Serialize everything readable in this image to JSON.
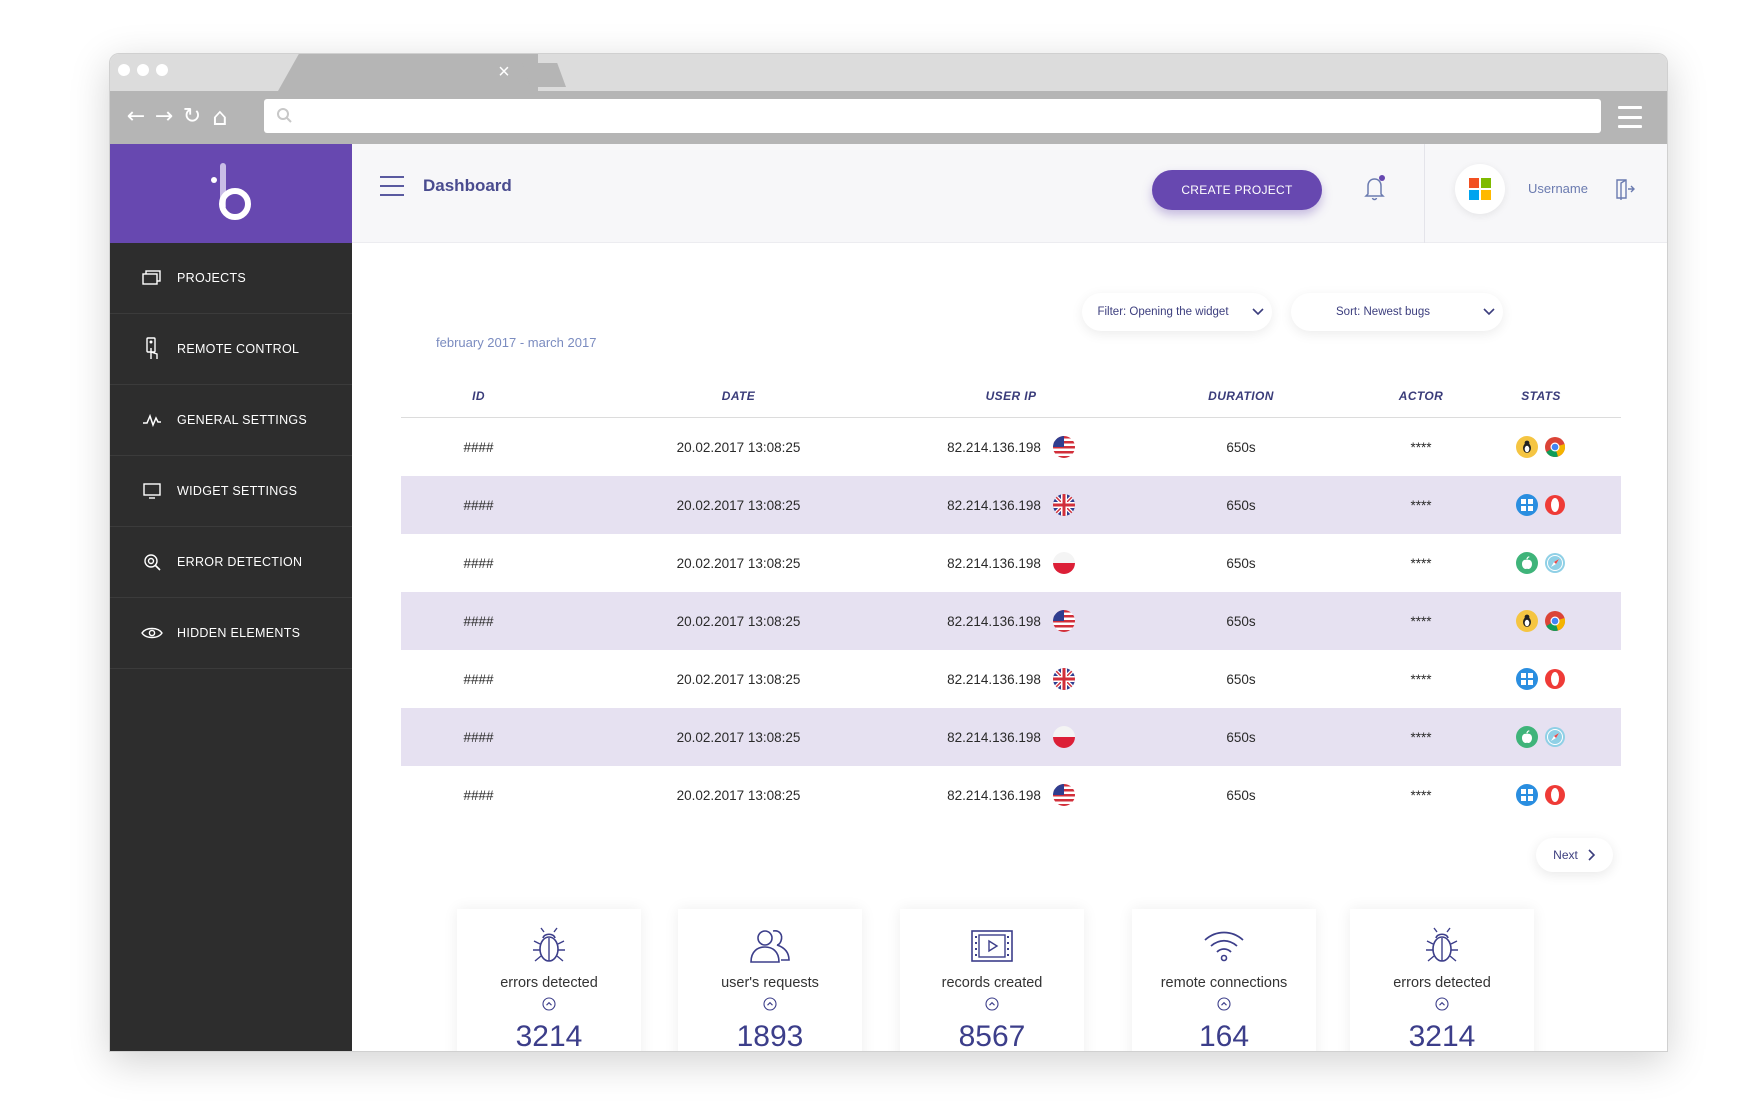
{
  "browser": {
    "tab_close": "×",
    "url_value": "",
    "nav": {
      "back": "←",
      "forward": "→",
      "reload": "↻",
      "home": "⌂"
    }
  },
  "app": {
    "page_title": "Dashboard",
    "create_button": "CREATE PROJECT",
    "username": "Username",
    "brand_color": "#6748b0"
  },
  "sidebar": {
    "items": [
      {
        "label": "PROJECTS",
        "icon": "projects-icon"
      },
      {
        "label": "REMOTE CONTROL",
        "icon": "remote-control-icon"
      },
      {
        "label": "GENERAL SETTINGS",
        "icon": "activity-icon"
      },
      {
        "label": "WIDGET SETTINGS",
        "icon": "monitor-icon"
      },
      {
        "label": "ERROR DETECTION",
        "icon": "target-search-icon"
      },
      {
        "label": "HIDDEN ELEMENTS",
        "icon": "eye-icon"
      }
    ]
  },
  "filters": {
    "date_range": "february 2017 - march 2017",
    "filter_label": "Filter: Opening the widget",
    "sort_label": "Sort: Newest bugs"
  },
  "table": {
    "headers": {
      "id": "ID",
      "date": "DATE",
      "ip": "USER IP",
      "duration": "DURATION",
      "actor": "ACTOR",
      "stats": "STATS"
    },
    "rows": [
      {
        "id": "####",
        "date": "20.02.2017 13:08:25",
        "ip": "82.214.136.198",
        "flag": "us",
        "duration": "650s",
        "actor": "****",
        "os": "linux",
        "browser": "chrome"
      },
      {
        "id": "####",
        "date": "20.02.2017 13:08:25",
        "ip": "82.214.136.198",
        "flag": "uk",
        "duration": "650s",
        "actor": "****",
        "os": "windows",
        "browser": "opera"
      },
      {
        "id": "####",
        "date": "20.02.2017 13:08:25",
        "ip": "82.214.136.198",
        "flag": "pl",
        "duration": "650s",
        "actor": "****",
        "os": "apple",
        "browser": "safari"
      },
      {
        "id": "####",
        "date": "20.02.2017 13:08:25",
        "ip": "82.214.136.198",
        "flag": "us",
        "duration": "650s",
        "actor": "****",
        "os": "linux",
        "browser": "chrome"
      },
      {
        "id": "####",
        "date": "20.02.2017 13:08:25",
        "ip": "82.214.136.198",
        "flag": "uk",
        "duration": "650s",
        "actor": "****",
        "os": "windows",
        "browser": "opera"
      },
      {
        "id": "####",
        "date": "20.02.2017 13:08:25",
        "ip": "82.214.136.198",
        "flag": "pl",
        "duration": "650s",
        "actor": "****",
        "os": "apple",
        "browser": "safari"
      },
      {
        "id": "####",
        "date": "20.02.2017 13:08:25",
        "ip": "82.214.136.198",
        "flag": "us",
        "duration": "650s",
        "actor": "****",
        "os": "windows",
        "browser": "opera"
      }
    ],
    "next_label": "Next"
  },
  "stats_cards": [
    {
      "label": "errors detected",
      "value": "3214",
      "icon": "bug-icon"
    },
    {
      "label": "user's requests",
      "value": "1893",
      "icon": "users-icon"
    },
    {
      "label": "records created",
      "value": "8567",
      "icon": "film-play-icon"
    },
    {
      "label": "remote connections",
      "value": "164",
      "icon": "wifi-icon"
    },
    {
      "label": "errors detected",
      "value": "3214",
      "icon": "bug-icon"
    }
  ]
}
